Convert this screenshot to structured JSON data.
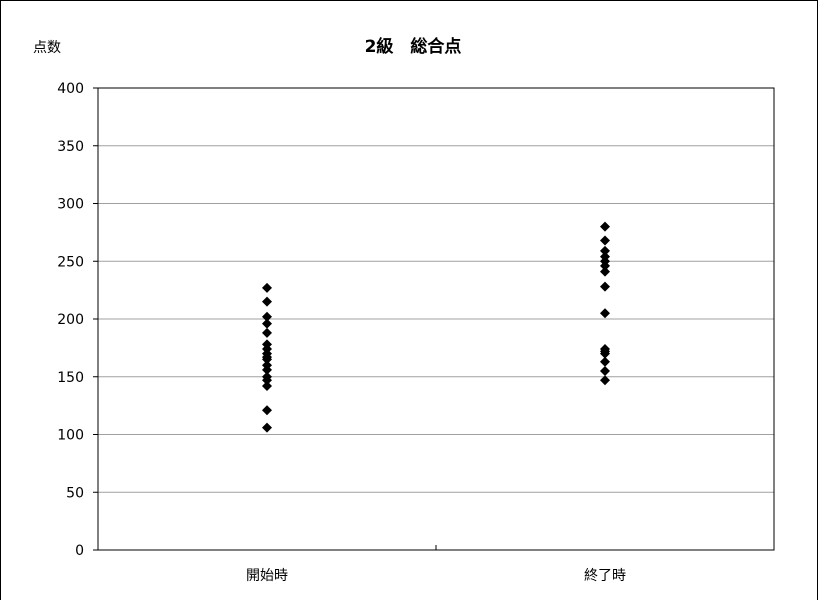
{
  "chart_data": {
    "type": "scatter",
    "title": "2級　総合点",
    "ylabel": "点数",
    "xlabel": "",
    "categories": [
      "開始時",
      "終了時"
    ],
    "ylim": [
      0,
      400
    ],
    "yticks": [
      0,
      50,
      100,
      150,
      200,
      250,
      300,
      350,
      400
    ],
    "grid": true,
    "marker": "diamond",
    "marker_color": "#000000",
    "series": [
      {
        "category": "開始時",
        "values": [
          227,
          215,
          202,
          196,
          188,
          178,
          174,
          170,
          167,
          165,
          160,
          156,
          150,
          147,
          142,
          121,
          106
        ]
      },
      {
        "category": "終了時",
        "values": [
          280,
          268,
          259,
          254,
          250,
          246,
          241,
          228,
          205,
          174,
          172,
          170,
          163,
          155,
          147
        ]
      }
    ]
  }
}
